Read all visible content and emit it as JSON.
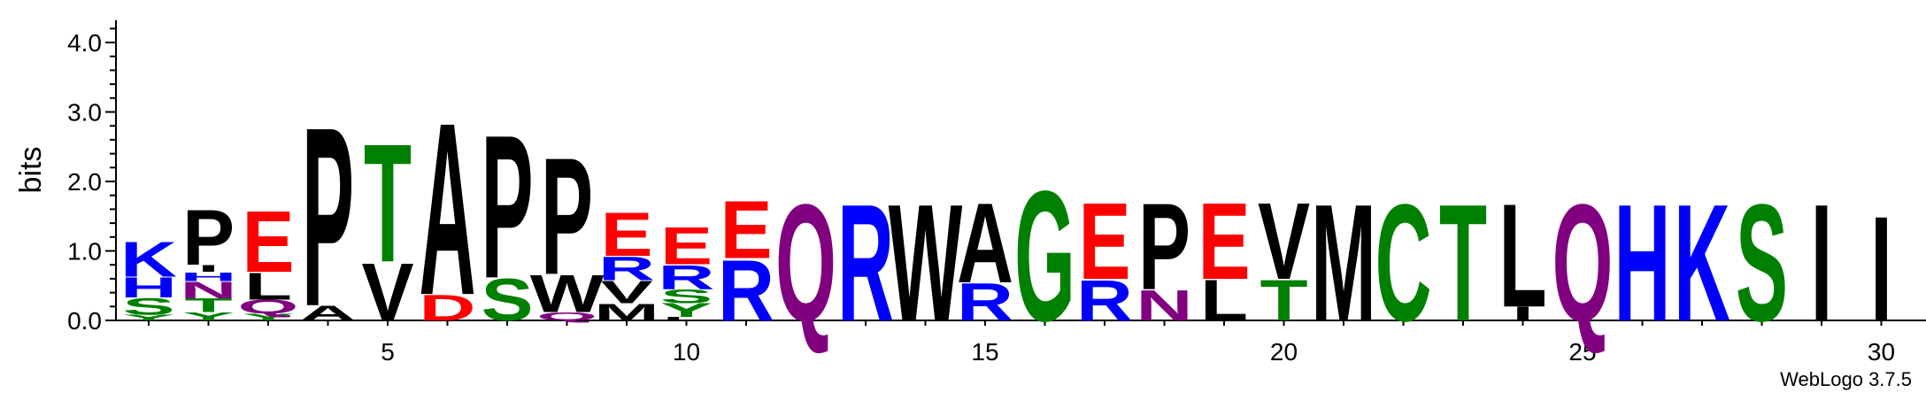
{
  "chart_data": {
    "type": "sequence-logo",
    "ylabel": "bits",
    "ylim": [
      0,
      4.32
    ],
    "yticks": [
      "0.0",
      "1.0",
      "2.0",
      "3.0",
      "4.0"
    ],
    "y_tick_values": [
      0,
      1,
      2,
      3,
      4
    ],
    "xticks": [
      "5",
      "10",
      "15",
      "20",
      "25",
      "30"
    ],
    "x_tick_values": [
      5,
      10,
      15,
      20,
      25,
      30
    ],
    "positions": 30,
    "credit": "WebLogo 3.7.5",
    "colors": {
      "K": "#0000ff",
      "R": "#0000ff",
      "H": "#0000ff",
      "D": "#ff0000",
      "E": "#ff0000",
      "S": "#008000",
      "T": "#008000",
      "Y": "#008000",
      "G": "#008000",
      "C": "#008000",
      "N": "#800080",
      "Q": "#800080",
      "P": "#000000",
      "A": "#000000",
      "V": "#000000",
      "L": "#000000",
      "I": "#000000",
      "M": "#000000",
      "W": "#000000",
      "F": "#000000"
    },
    "stacks": [
      {
        "pos": 1,
        "letters": [
          {
            "aa": "Y",
            "h": 0.08
          },
          {
            "aa": "S",
            "h": 0.25
          },
          {
            "aa": "H",
            "h": 0.3
          },
          {
            "aa": "K",
            "h": 0.52
          }
        ]
      },
      {
        "pos": 2,
        "letters": [
          {
            "aa": "Y",
            "h": 0.12
          },
          {
            "aa": "T",
            "h": 0.2
          },
          {
            "aa": "N",
            "h": 0.25
          },
          {
            "aa": "H",
            "h": 0.13
          },
          {
            "aa": "I",
            "h": 0.1
          },
          {
            "aa": "P",
            "h": 0.82
          }
        ]
      },
      {
        "pos": 3,
        "letters": [
          {
            "aa": "Y",
            "h": 0.1
          },
          {
            "aa": "Q",
            "h": 0.2
          },
          {
            "aa": "L",
            "h": 0.4
          },
          {
            "aa": "E",
            "h": 0.9
          }
        ]
      },
      {
        "pos": 4,
        "letters": [
          {
            "aa": "A",
            "h": 0.22
          },
          {
            "aa": "P",
            "h": 2.65
          }
        ]
      },
      {
        "pos": 5,
        "letters": [
          {
            "aa": "V",
            "h": 0.85
          },
          {
            "aa": "T",
            "h": 1.75
          }
        ]
      },
      {
        "pos": 6,
        "letters": [
          {
            "aa": "D",
            "h": 0.38
          },
          {
            "aa": "A",
            "h": 2.55
          }
        ]
      },
      {
        "pos": 7,
        "letters": [
          {
            "aa": "S",
            "h": 0.62
          },
          {
            "aa": "P",
            "h": 2.12
          }
        ]
      },
      {
        "pos": 8,
        "letters": [
          {
            "aa": "Q",
            "h": 0.12
          },
          {
            "aa": "W",
            "h": 0.55
          },
          {
            "aa": "P",
            "h": 1.73
          }
        ]
      },
      {
        "pos": 9,
        "letters": [
          {
            "aa": "M",
            "h": 0.25
          },
          {
            "aa": "V",
            "h": 0.33
          },
          {
            "aa": "R",
            "h": 0.35
          },
          {
            "aa": "E",
            "h": 0.65
          }
        ]
      },
      {
        "pos": 10,
        "letters": [
          {
            "aa": "L",
            "h": 0.05
          },
          {
            "aa": "Y",
            "h": 0.2
          },
          {
            "aa": "S",
            "h": 0.2
          },
          {
            "aa": "R",
            "h": 0.36
          },
          {
            "aa": "E",
            "h": 0.55
          }
        ]
      },
      {
        "pos": 11,
        "letters": [
          {
            "aa": "R",
            "h": 0.9
          },
          {
            "aa": "E",
            "h": 0.85
          }
        ]
      },
      {
        "pos": 12,
        "letters": [
          {
            "aa": "Q",
            "h": 1.73
          }
        ]
      },
      {
        "pos": 13,
        "letters": [
          {
            "aa": "R",
            "h": 1.73
          }
        ]
      },
      {
        "pos": 14,
        "letters": [
          {
            "aa": "W",
            "h": 1.73
          }
        ]
      },
      {
        "pos": 15,
        "letters": [
          {
            "aa": "R",
            "h": 0.55
          },
          {
            "aa": "A",
            "h": 1.18
          }
        ]
      },
      {
        "pos": 16,
        "letters": [
          {
            "aa": "G",
            "h": 1.93
          }
        ]
      },
      {
        "pos": 17,
        "letters": [
          {
            "aa": "R",
            "h": 0.6
          },
          {
            "aa": "E",
            "h": 1.13
          }
        ]
      },
      {
        "pos": 18,
        "letters": [
          {
            "aa": "N",
            "h": 0.45
          },
          {
            "aa": "P",
            "h": 1.28
          }
        ]
      },
      {
        "pos": 19,
        "letters": [
          {
            "aa": "L",
            "h": 0.6
          },
          {
            "aa": "E",
            "h": 1.13
          }
        ]
      },
      {
        "pos": 20,
        "letters": [
          {
            "aa": "T",
            "h": 0.6
          },
          {
            "aa": "V",
            "h": 1.13
          }
        ]
      },
      {
        "pos": 21,
        "letters": [
          {
            "aa": "M",
            "h": 1.73
          }
        ]
      },
      {
        "pos": 22,
        "letters": [
          {
            "aa": "C",
            "h": 1.73
          }
        ]
      },
      {
        "pos": 23,
        "letters": [
          {
            "aa": "T",
            "h": 1.73
          }
        ]
      },
      {
        "pos": 24,
        "letters": [
          {
            "aa": "I",
            "h": 0.2
          },
          {
            "aa": "L",
            "h": 1.53
          }
        ]
      },
      {
        "pos": 25,
        "letters": [
          {
            "aa": "Q",
            "h": 1.73
          }
        ]
      },
      {
        "pos": 26,
        "letters": [
          {
            "aa": "H",
            "h": 1.73
          }
        ]
      },
      {
        "pos": 27,
        "letters": [
          {
            "aa": "K",
            "h": 1.73
          }
        ]
      },
      {
        "pos": 28,
        "letters": [
          {
            "aa": "S",
            "h": 1.73
          }
        ]
      },
      {
        "pos": 29,
        "letters": [
          {
            "aa": "I",
            "h": 1.73
          }
        ]
      },
      {
        "pos": 30,
        "letters": [
          {
            "aa": "I",
            "h": 1.55
          }
        ]
      }
    ]
  }
}
